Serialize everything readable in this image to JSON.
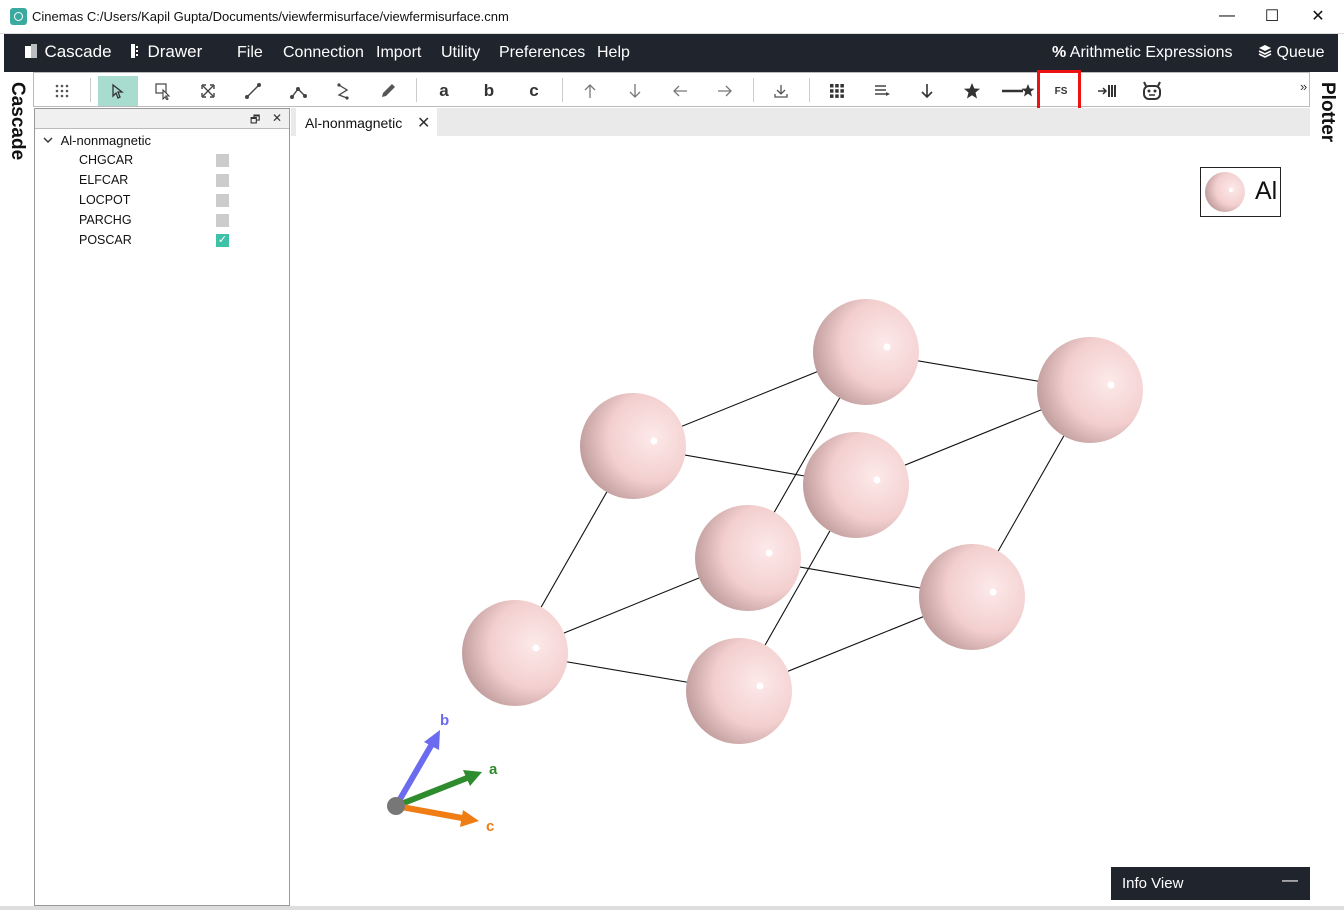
{
  "window": {
    "title": "Cinemas C:/Users/Kapil Gupta/Documents/viewfermisurface/viewfermisurface.cnm",
    "minimize_label": "—",
    "maximize_label": "☐",
    "close_label": "✕"
  },
  "menubar": {
    "cascade": "Cascade",
    "drawer": "Drawer",
    "file": "File",
    "connection": "Connection",
    "import": "Import",
    "utility": "Utility",
    "preferences": "Preferences",
    "help": "Help",
    "arithmetic": "Arithmetic Expressions",
    "queue": "Queue"
  },
  "side": {
    "left": "Cascade",
    "right": "Plotter"
  },
  "toolbar": {
    "a_label": "a",
    "b_label": "b",
    "c_label": "c",
    "fs_label": "FS",
    "overflow": "»"
  },
  "panel": {
    "restore": "🗗",
    "close": "✕",
    "root_label": "Al-nonmagnetic",
    "items": [
      {
        "label": "CHGCAR",
        "checked": false
      },
      {
        "label": "ELFCAR",
        "checked": false
      },
      {
        "label": "LOCPOT",
        "checked": false
      },
      {
        "label": "PARCHG",
        "checked": false
      },
      {
        "label": "POSCAR",
        "checked": true
      }
    ],
    "check_glyph": "✓"
  },
  "tab": {
    "label": "Al-nonmagnetic",
    "close": "✕"
  },
  "legend": {
    "element": "Al"
  },
  "axes": {
    "a": "a",
    "b": "b",
    "c": "c"
  },
  "infoview": {
    "title": "Info View",
    "collapse": "—"
  },
  "colors": {
    "menubar_bg": "#20242c",
    "active_tool": "#a8dccf",
    "checkbox_on": "#3ec2a7",
    "atom": "#f5d2d2",
    "axis_a": "#2e8b2e",
    "axis_b": "#6b6bf0",
    "axis_c": "#f07c14",
    "highlight": "#ee1111"
  }
}
